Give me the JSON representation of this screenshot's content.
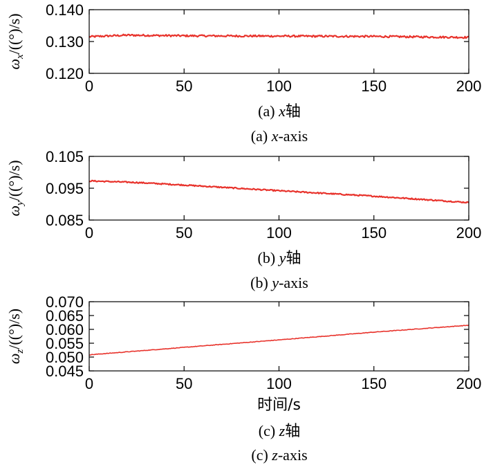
{
  "figure": {
    "line_color": "#e8322b",
    "axis_color": "#000000"
  },
  "chart_data": [
    {
      "type": "line",
      "ylabel": "ω_x/((°)/s)",
      "ylabel_symbol": "ω",
      "ylabel_sub": "x",
      "ylabel_unit": "/((°)/s)",
      "xlabel": "",
      "caption_cn": "(a) x轴",
      "caption_en": "(a) x-axis",
      "caption_prefix": "(a) ",
      "caption_var": "x",
      "caption_cn_suffix": "轴",
      "caption_en_suffix": "-axis",
      "xlim": [
        0,
        200
      ],
      "ylim": [
        0.12,
        0.14
      ],
      "xticks": [
        0,
        50,
        100,
        150,
        200
      ],
      "yticks": [
        0.12,
        0.13,
        0.14
      ],
      "xtick_labels": [
        "0",
        "50",
        "100",
        "150",
        "200"
      ],
      "ytick_labels": [
        "0.120",
        "0.130",
        "0.140"
      ],
      "grid": false,
      "noise": 0.0003,
      "series": [
        {
          "x": [
            0,
            20,
            50,
            100,
            150,
            200
          ],
          "y": [
            0.1315,
            0.132,
            0.1318,
            0.1317,
            0.1316,
            0.1313
          ]
        }
      ]
    },
    {
      "type": "line",
      "ylabel": "ω_y/((°)/s)",
      "ylabel_symbol": "ω",
      "ylabel_sub": "y",
      "ylabel_unit": "/((°)/s)",
      "xlabel": "",
      "caption_cn": "(b) y轴",
      "caption_en": "(b) y-axis",
      "caption_prefix": "(b) ",
      "caption_var": "y",
      "caption_cn_suffix": "轴",
      "caption_en_suffix": "-axis",
      "xlim": [
        0,
        200
      ],
      "ylim": [
        0.085,
        0.105
      ],
      "xticks": [
        0,
        50,
        100,
        150,
        200
      ],
      "yticks": [
        0.085,
        0.095,
        0.105
      ],
      "xtick_labels": [
        "0",
        "50",
        "100",
        "150",
        "200"
      ],
      "ytick_labels": [
        "0.085",
        "0.095",
        "0.105"
      ],
      "grid": false,
      "noise": 0.0002,
      "series": [
        {
          "x": [
            0,
            25,
            50,
            100,
            150,
            200
          ],
          "y": [
            0.0973,
            0.0968,
            0.096,
            0.0942,
            0.0925,
            0.0905
          ]
        }
      ]
    },
    {
      "type": "line",
      "ylabel": "ω_z/((°)/s)",
      "ylabel_symbol": "ω",
      "ylabel_sub": "z",
      "ylabel_unit": "/((°)/s)",
      "xlabel": "时间/s",
      "caption_cn": "(c) z轴",
      "caption_en": "(c) z-axis",
      "caption_prefix": "(c) ",
      "caption_var": "z",
      "caption_cn_suffix": "轴",
      "caption_en_suffix": "-axis",
      "xlim": [
        0,
        200
      ],
      "ylim": [
        0.045,
        0.07
      ],
      "xticks": [
        0,
        50,
        100,
        150,
        200
      ],
      "yticks": [
        0.045,
        0.05,
        0.055,
        0.06,
        0.065,
        0.07
      ],
      "xtick_labels": [
        "0",
        "50",
        "100",
        "150",
        "200"
      ],
      "ytick_labels": [
        "0.045",
        "0.050",
        "0.055",
        "0.060",
        "0.065",
        "0.070"
      ],
      "grid": false,
      "noise": 0.0001,
      "series": [
        {
          "x": [
            0,
            50,
            100,
            150,
            200
          ],
          "y": [
            0.0508,
            0.0535,
            0.0562,
            0.059,
            0.0615
          ]
        }
      ]
    }
  ]
}
